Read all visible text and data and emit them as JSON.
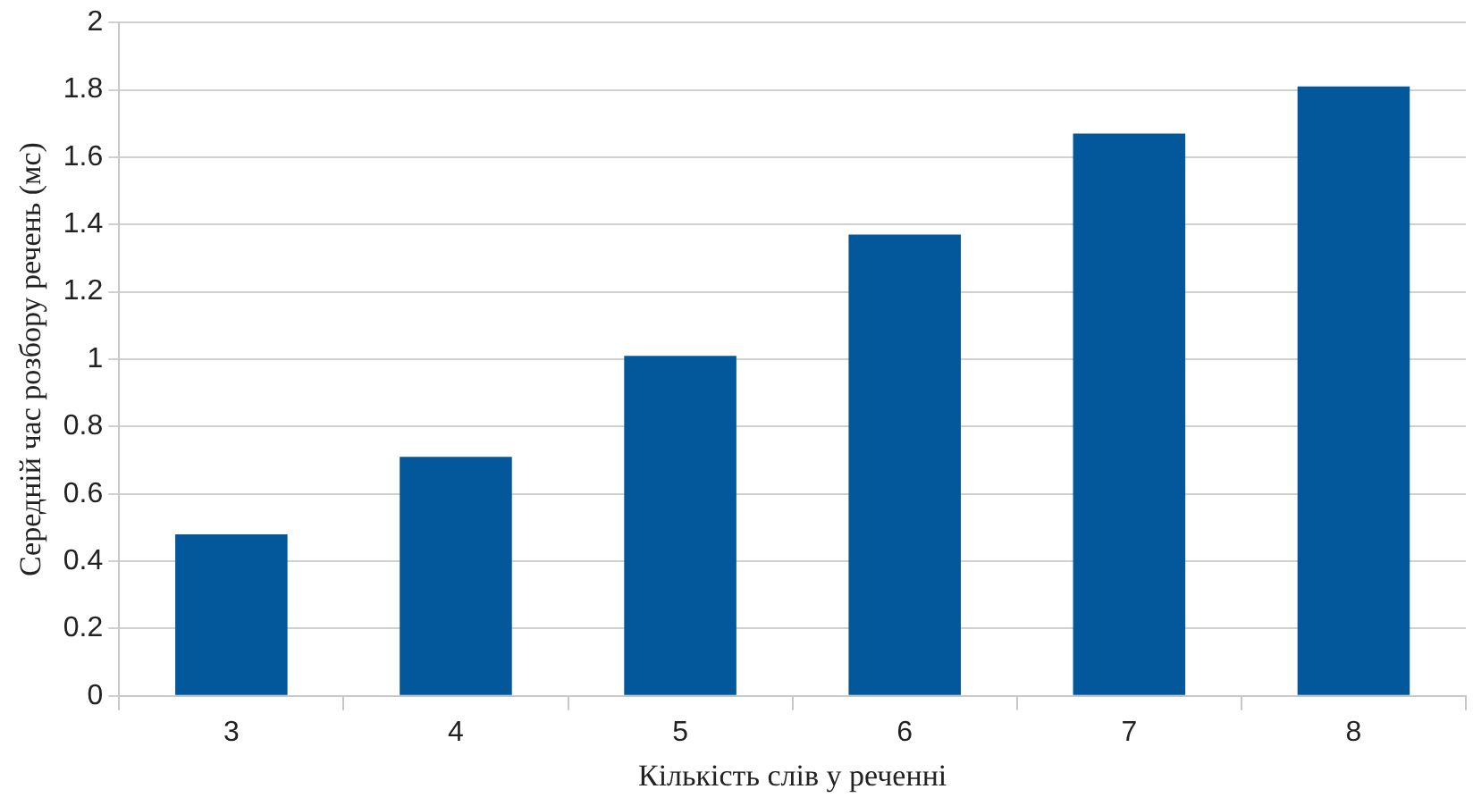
{
  "chart_data": {
    "type": "bar",
    "xlabel": "Кількість слів у реченні",
    "ylabel": "Середній час розбору речень (мс)",
    "categories": [
      "3",
      "4",
      "5",
      "6",
      "7",
      "8"
    ],
    "values": [
      0.48,
      0.71,
      1.01,
      1.37,
      1.67,
      1.81
    ],
    "color": "#02589b",
    "ylim": [
      0,
      2
    ],
    "yticks": [
      0,
      0.2,
      0.4,
      0.6,
      0.8,
      1,
      1.2,
      1.4,
      1.6,
      1.8,
      2
    ],
    "grid": "y"
  }
}
